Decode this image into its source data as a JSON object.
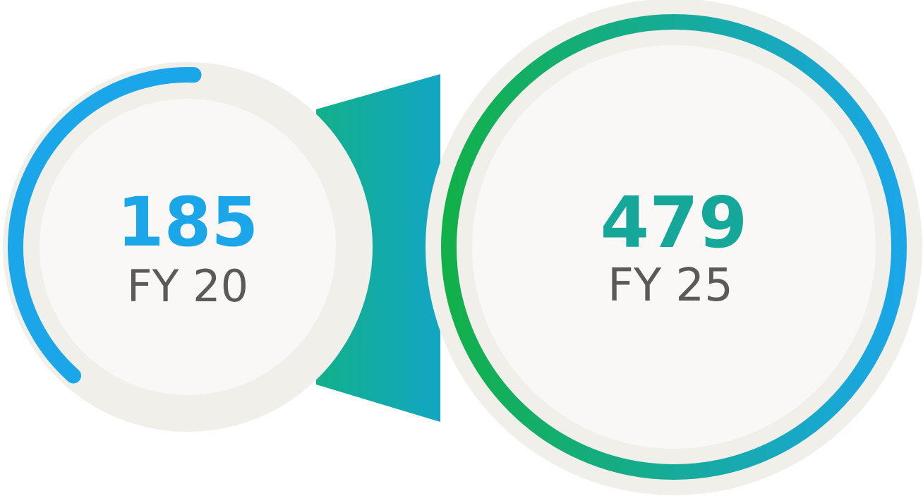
{
  "chart_data": {
    "type": "bar",
    "categories": [
      "FY 20",
      "FY 25"
    ],
    "values": [
      185,
      479
    ],
    "progress": [
      0.39,
      1.0
    ],
    "value_labels": [
      "185",
      "479"
    ],
    "category_labels": [
      "FY 20",
      "FY 25"
    ],
    "title": "",
    "xlabel": "",
    "ylabel": ""
  },
  "colors": {
    "small_ring": "#1aa6e8",
    "small_value": "#1aa6e8",
    "large_ring_start": "#12b04a",
    "large_ring_end": "#1aa6e8",
    "large_value": "#16a79b",
    "label": "#5a5a5a",
    "disc_outer": "#f1efea",
    "disc_inner": "#f9f8f6",
    "connector_start": "#12b08a",
    "connector_end": "#12a6c4"
  }
}
